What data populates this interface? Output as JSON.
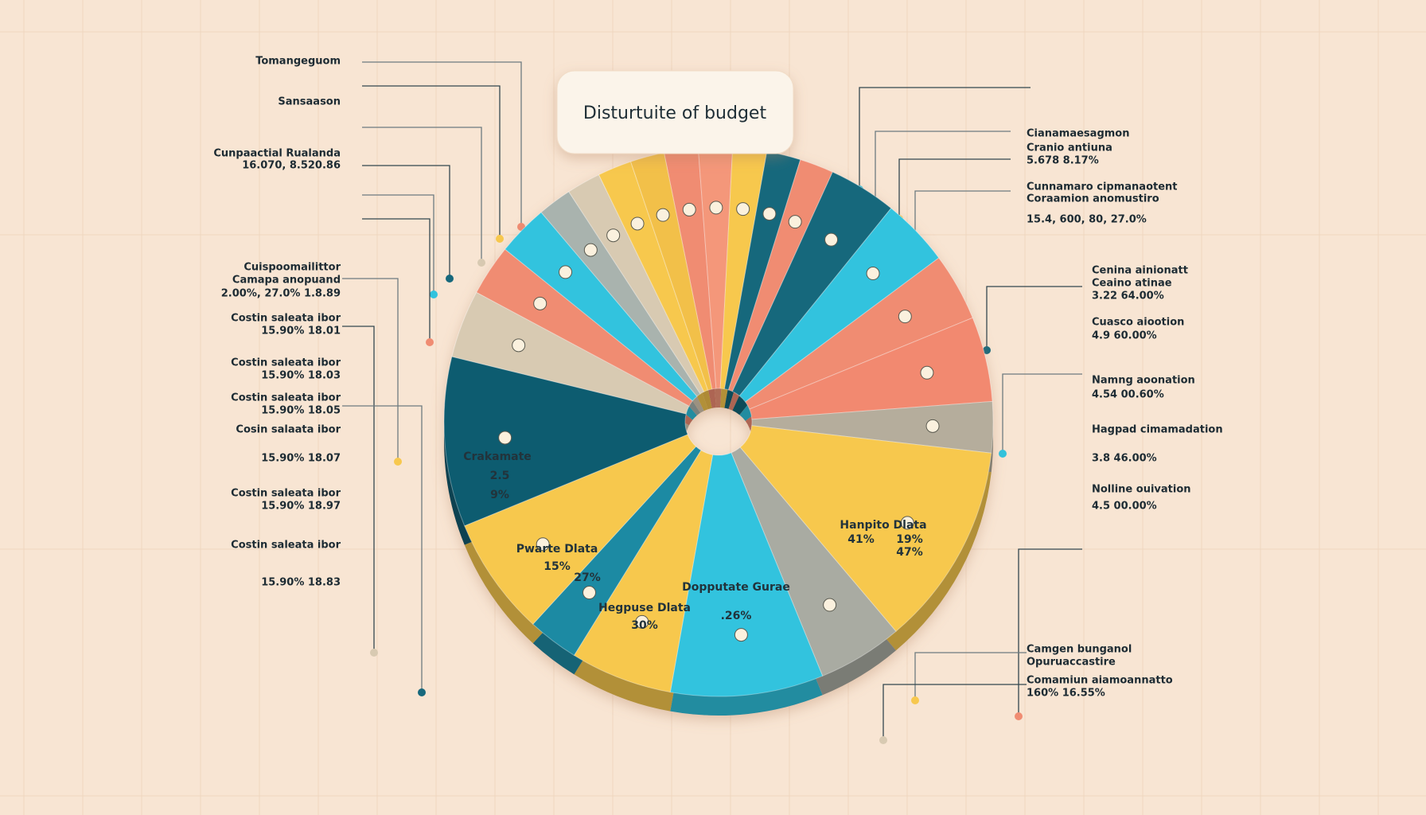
{
  "chart_data": {
    "type": "pie",
    "title": "Disturtuite of budget",
    "values": [
      2,
      2,
      2,
      2,
      2,
      4,
      4,
      4,
      5,
      3,
      12,
      5,
      9,
      6,
      3,
      7,
      10,
      4,
      3,
      3,
      2,
      2,
      2,
      2
    ],
    "colors": [
      "#f08c72",
      "#f4977a",
      "#f7c84e",
      "#17687c",
      "#f08c72",
      "#17687c",
      "#31c3de",
      "#f08c72",
      "#f2896f",
      "#b5ad9c",
      "#f7c84e",
      "#a9aba2",
      "#31c3de",
      "#f7c84e",
      "#1b8aa3",
      "#f7c84e",
      "#105c70",
      "#d8cab2",
      "#f08c72",
      "#31c3de",
      "#a9b3ae",
      "#d8cab2",
      "#f7c84e",
      "#f2c04a"
    ],
    "donut": true,
    "annotations": [
      "Crakamate",
      "2.5",
      "9%",
      "Dopputate Gurae",
      ".26%",
      "Hanpito Dlata",
      "41%",
      "19%",
      "47%",
      "Pwarte Dlata",
      "15%",
      "27%",
      "Hegpuse Dlata",
      "30%"
    ],
    "left_labels": [
      "Tomangeguom",
      "Sansaason",
      "Cunpaactial Rualanda",
      "16.070, 8.520.86",
      "Cuispoomailittor",
      "Camapa anopuand",
      "2.00%, 27.0% 1.8.89",
      "Costin saleata ibor",
      "15.90% 18.01",
      "Costin saleata ibor",
      "15.90% 18.03",
      "Costin saleata ibor",
      "15.90% 18.05",
      "Cosin salaata ibor",
      "15.90% 18.07",
      "Costin saleata ibor",
      "15.90% 18.97",
      "Costin saleata ibor",
      "15.90% 18.83"
    ],
    "right_labels": [
      "Cianamaesagmon",
      "Cranio antiuna",
      "5.678 8.17%",
      "Cunnamaro cipmanaotent",
      "Coraamion anomustiro",
      "15.4, 600, 80, 27.0%",
      "Cenina ainionatt",
      "Ceaino atinae",
      "3.22 64.00%",
      "Cuasco aiootion",
      "4.9 60.00%",
      "Namng aoonation",
      "4.54 00.60%",
      "Hagpad cimamadation",
      "3.8 46.00%",
      "Nolline ouivation",
      "4.5 00.00%",
      "Camgen bunganol",
      "Opuruaccastire",
      "Comamiun aiamoannatto",
      "160% 16.55%"
    ]
  }
}
